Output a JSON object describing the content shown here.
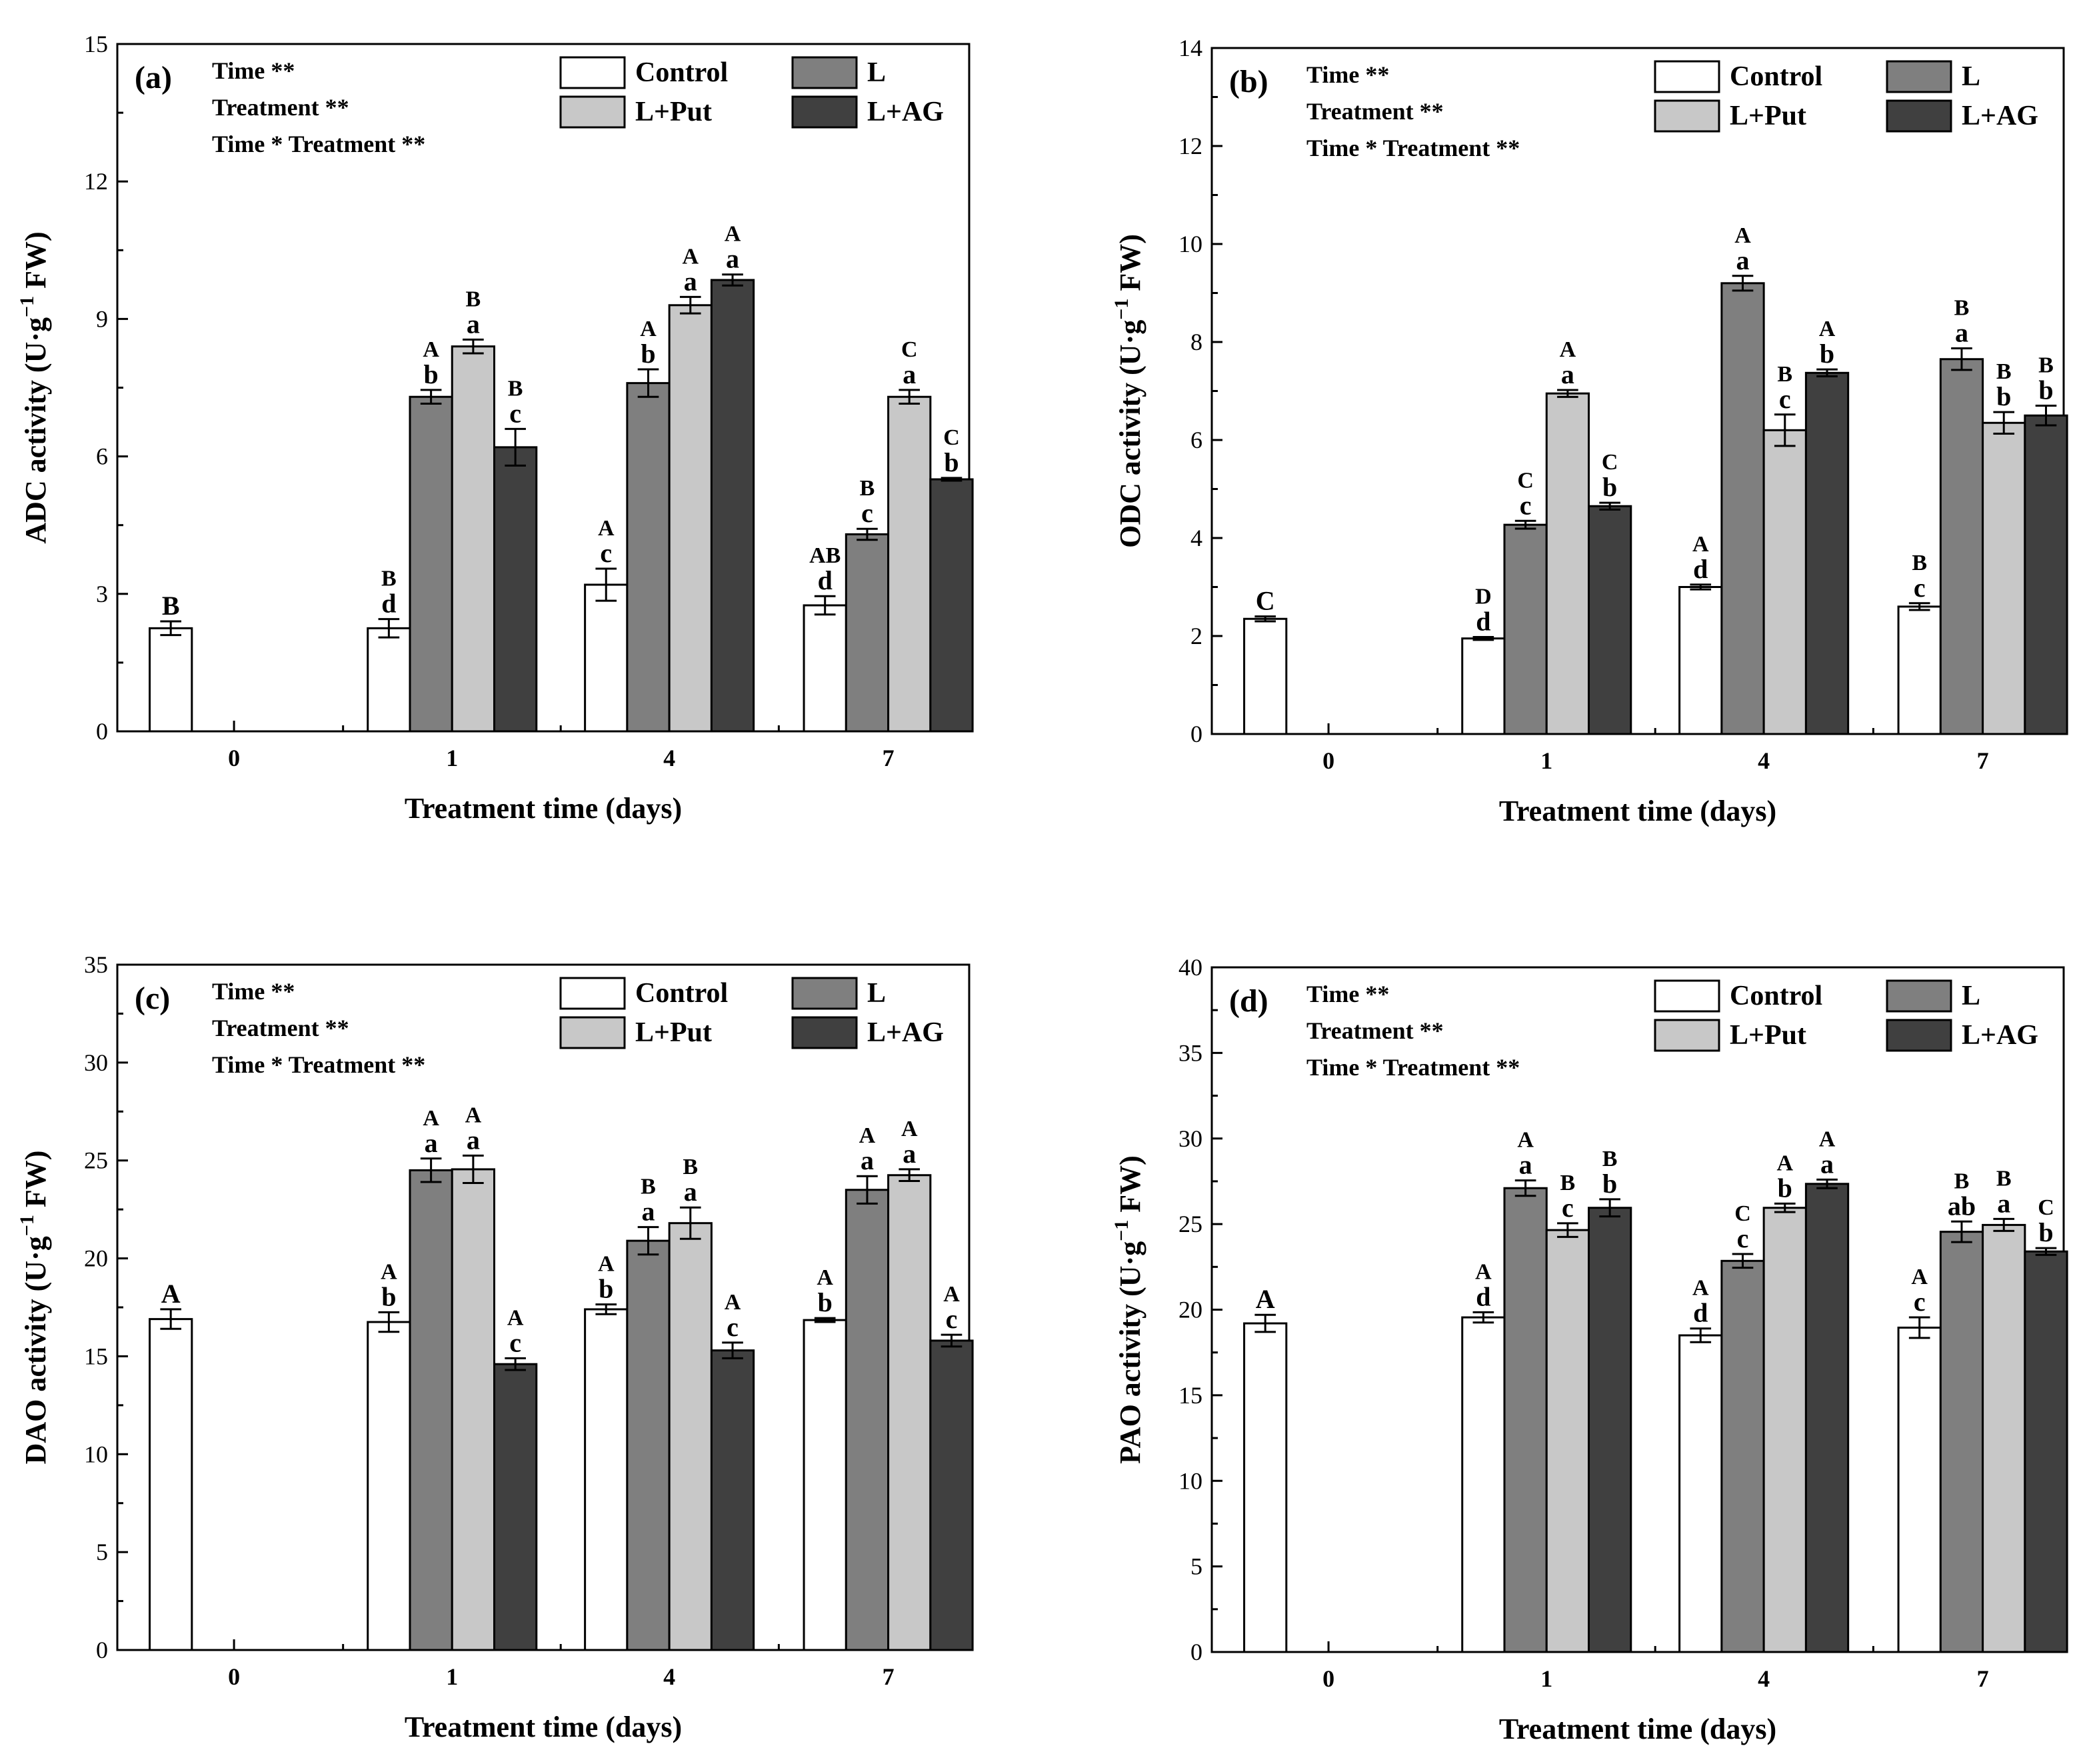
{
  "figure": {
    "colors": {
      "Control": "#ffffff",
      "L": "#7f7f7f",
      "L+Put": "#c8c8c8",
      "L+AG": "#404040"
    },
    "legend_order": [
      "Control",
      "L",
      "L+Put",
      "L+AG"
    ]
  },
  "chart_data": [
    {
      "type": "bar",
      "panel": "(a)",
      "ylabel": "ADC activity (U·g",
      "ylabel_sup": "−1",
      "ylabel_tail": " FW)",
      "xlabel": "Treatment time (days)",
      "categories": [
        "0",
        "1",
        "4",
        "7"
      ],
      "ylim": [
        0,
        15
      ],
      "yticks": [
        0,
        3,
        6,
        9,
        12,
        15
      ],
      "stats": [
        "Time **",
        "Treatment  **",
        "Time * Treatment **"
      ],
      "series": [
        {
          "name": "Control",
          "values": [
            2.25,
            2.25,
            3.2,
            2.75
          ],
          "errors": [
            0.15,
            0.2,
            0.35,
            0.2
          ],
          "labels": [
            [
              "B"
            ],
            [
              "B",
              "d"
            ],
            [
              "A",
              "c"
            ],
            [
              "AB",
              "d"
            ]
          ]
        },
        {
          "name": "L",
          "values": [
            null,
            7.3,
            7.6,
            4.3
          ],
          "errors": [
            null,
            0.15,
            0.3,
            0.12
          ],
          "labels": [
            null,
            [
              "A",
              "b"
            ],
            [
              "A",
              "b"
            ],
            [
              "B",
              "c"
            ]
          ]
        },
        {
          "name": "L+Put",
          "values": [
            null,
            8.4,
            9.3,
            7.3
          ],
          "errors": [
            null,
            0.15,
            0.18,
            0.15
          ],
          "labels": [
            null,
            [
              "B",
              "a"
            ],
            [
              "A",
              "a"
            ],
            [
              "C",
              "a"
            ]
          ]
        },
        {
          "name": "L+AG",
          "values": [
            null,
            6.2,
            9.85,
            5.5
          ],
          "errors": [
            null,
            0.4,
            0.12,
            0.03
          ],
          "labels": [
            null,
            [
              "B",
              "c"
            ],
            [
              "A",
              "a"
            ],
            [
              "C",
              "b"
            ]
          ]
        }
      ]
    },
    {
      "type": "bar",
      "panel": "(b)",
      "ylabel": "ODC activity (U·g",
      "ylabel_sup": "−1",
      "ylabel_tail": " FW)",
      "xlabel": "Treatment time (days)",
      "categories": [
        "0",
        "1",
        "4",
        "7"
      ],
      "ylim": [
        0,
        14
      ],
      "yticks": [
        0,
        2,
        4,
        6,
        8,
        10,
        12,
        14
      ],
      "stats": [
        "Time **",
        "Treatment  **",
        "Time * Treatment **"
      ],
      "series": [
        {
          "name": "Control",
          "values": [
            2.35,
            1.95,
            3.0,
            2.6
          ],
          "errors": [
            0.05,
            0.03,
            0.05,
            0.07
          ],
          "labels": [
            [
              "C"
            ],
            [
              "D",
              "d"
            ],
            [
              "A",
              "d"
            ],
            [
              "B",
              "c"
            ]
          ]
        },
        {
          "name": "L",
          "values": [
            null,
            4.27,
            9.2,
            7.65
          ],
          "errors": [
            null,
            0.08,
            0.15,
            0.22
          ],
          "labels": [
            null,
            [
              "C",
              "c"
            ],
            [
              "A",
              "a"
            ],
            [
              "B",
              "a"
            ]
          ]
        },
        {
          "name": "L+Put",
          "values": [
            null,
            6.95,
            6.2,
            6.35
          ],
          "errors": [
            null,
            0.07,
            0.32,
            0.22
          ],
          "labels": [
            null,
            [
              "A",
              "a"
            ],
            [
              "B",
              "c"
            ],
            [
              "B",
              "b"
            ]
          ]
        },
        {
          "name": "L+AG",
          "values": [
            null,
            4.65,
            7.37,
            6.5
          ],
          "errors": [
            null,
            0.07,
            0.07,
            0.2
          ],
          "labels": [
            null,
            [
              "C",
              "b"
            ],
            [
              "A",
              "b"
            ],
            [
              "B",
              "b"
            ]
          ]
        }
      ]
    },
    {
      "type": "bar",
      "panel": "(c)",
      "ylabel": "DAO activity (U·g",
      "ylabel_sup": "−1",
      "ylabel_tail": " FW)",
      "xlabel": "Treatment time (days)",
      "categories": [
        "0",
        "1",
        "4",
        "7"
      ],
      "ylim": [
        0,
        35
      ],
      "yticks": [
        0,
        5,
        10,
        15,
        20,
        25,
        30,
        35
      ],
      "stats": [
        "Time **",
        "Treatment  **",
        "Time * Treatment **"
      ],
      "series": [
        {
          "name": "Control",
          "values": [
            16.9,
            16.75,
            17.4,
            16.85
          ],
          "errors": [
            0.5,
            0.5,
            0.25,
            0.1
          ],
          "labels": [
            [
              "A"
            ],
            [
              "A",
              "b"
            ],
            [
              "A",
              "b"
            ],
            [
              "A",
              "b"
            ]
          ]
        },
        {
          "name": "L",
          "values": [
            null,
            24.5,
            20.9,
            23.5
          ],
          "errors": [
            null,
            0.6,
            0.7,
            0.7
          ],
          "labels": [
            null,
            [
              "A",
              "a"
            ],
            [
              "B",
              "a"
            ],
            [
              "A",
              "a"
            ]
          ]
        },
        {
          "name": "L+Put",
          "values": [
            null,
            24.55,
            21.8,
            24.25
          ],
          "errors": [
            null,
            0.7,
            0.8,
            0.3
          ],
          "labels": [
            null,
            [
              "A",
              "a"
            ],
            [
              "B",
              "a"
            ],
            [
              "A",
              "a"
            ]
          ]
        },
        {
          "name": "L+AG",
          "values": [
            null,
            14.6,
            15.3,
            15.8
          ],
          "errors": [
            null,
            0.3,
            0.4,
            0.3
          ],
          "labels": [
            null,
            [
              "A",
              "c"
            ],
            [
              "A",
              "c"
            ],
            [
              "A",
              "c"
            ]
          ]
        }
      ]
    },
    {
      "type": "bar",
      "panel": "(d)",
      "ylabel": "PAO activity (U·g",
      "ylabel_sup": "−1",
      "ylabel_tail": " FW)",
      "xlabel": "Treatment time (days)",
      "categories": [
        "0",
        "1",
        "4",
        "7"
      ],
      "ylim": [
        0,
        40
      ],
      "yticks": [
        0,
        5,
        10,
        15,
        20,
        25,
        30,
        35,
        40
      ],
      "stats": [
        "Time **",
        "Treatment  **",
        "Time * Treatment **"
      ],
      "series": [
        {
          "name": "Control",
          "values": [
            19.2,
            19.55,
            18.5,
            18.95
          ],
          "errors": [
            0.5,
            0.3,
            0.4,
            0.6
          ],
          "labels": [
            [
              "A"
            ],
            [
              "A",
              "d"
            ],
            [
              "A",
              "d"
            ],
            [
              "A",
              "c"
            ]
          ]
        },
        {
          "name": "L",
          "values": [
            null,
            27.1,
            22.85,
            24.55
          ],
          "errors": [
            null,
            0.45,
            0.4,
            0.6
          ],
          "labels": [
            null,
            [
              "A",
              "a"
            ],
            [
              "C",
              "c"
            ],
            [
              "B",
              "ab"
            ]
          ]
        },
        {
          "name": "L+Put",
          "values": [
            null,
            24.65,
            25.95,
            24.95
          ],
          "errors": [
            null,
            0.4,
            0.25,
            0.35
          ],
          "labels": [
            null,
            [
              "B",
              "c"
            ],
            [
              "A",
              "b"
            ],
            [
              "B",
              "a"
            ]
          ]
        },
        {
          "name": "L+AG",
          "values": [
            null,
            25.95,
            27.35,
            23.4
          ],
          "errors": [
            null,
            0.5,
            0.25,
            0.2
          ],
          "labels": [
            null,
            [
              "B",
              "b"
            ],
            [
              "A",
              "a"
            ],
            [
              "C",
              "b"
            ]
          ]
        }
      ]
    }
  ]
}
